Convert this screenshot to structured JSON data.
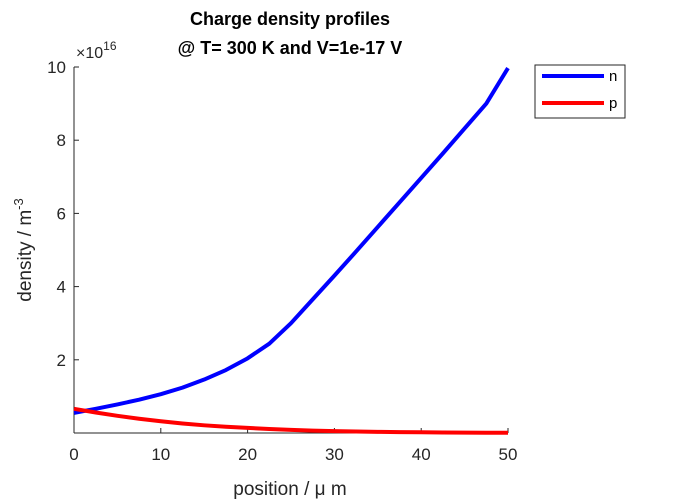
{
  "chart_data": {
    "type": "line",
    "title": [
      "Charge density profiles",
      "@ T= 300 K and V=1e-17 V"
    ],
    "xlabel": "position / μ m",
    "ylabel": "density / m",
    "ylabel_superscript": "-3",
    "y_scale_label": "×10",
    "y_scale_exponent": "16",
    "xlim": [
      0,
      50
    ],
    "ylim": [
      0,
      10
    ],
    "x_ticks": [
      0,
      10,
      20,
      30,
      40,
      50
    ],
    "x_tick_labels": [
      "0",
      "10",
      "20",
      "30",
      "40",
      "50"
    ],
    "y_ticks": [
      2,
      4,
      6,
      8,
      10
    ],
    "y_tick_labels": [
      "2",
      "4",
      "6",
      "8",
      "10"
    ],
    "grid": false,
    "legend_position": "outside-top-right",
    "series": [
      {
        "name": "n",
        "color": "#0000ff",
        "x": [
          0,
          2.5,
          5,
          7.5,
          10,
          12.5,
          15,
          17.5,
          20,
          22.5,
          25,
          27.5,
          30,
          32.5,
          35,
          37.5,
          40,
          42.5,
          45,
          47.5,
          50
        ],
        "values": [
          0.55,
          0.66,
          0.78,
          0.91,
          1.06,
          1.24,
          1.46,
          1.72,
          2.04,
          2.44,
          3.0,
          3.65,
          4.3,
          4.96,
          5.63,
          6.3,
          6.97,
          7.64,
          8.32,
          9.0,
          9.97
        ]
      },
      {
        "name": "p",
        "color": "#ff0000",
        "x": [
          0,
          2.5,
          5,
          7.5,
          10,
          12.5,
          15,
          17.5,
          20,
          22.5,
          25,
          27.5,
          30,
          32.5,
          35,
          37.5,
          40,
          42.5,
          45,
          47.5,
          50
        ],
        "values": [
          0.66,
          0.56,
          0.47,
          0.39,
          0.32,
          0.26,
          0.21,
          0.17,
          0.14,
          0.11,
          0.085,
          0.065,
          0.05,
          0.04,
          0.03,
          0.025,
          0.02,
          0.015,
          0.01,
          0.008,
          0.006
        ]
      }
    ]
  }
}
